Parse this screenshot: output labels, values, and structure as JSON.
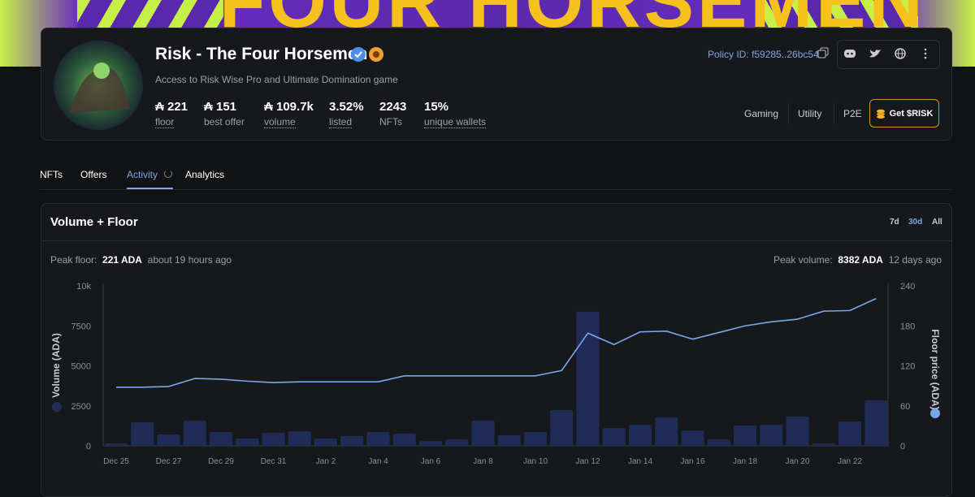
{
  "banner": {
    "text": "FOUR HORSEMEN"
  },
  "collection": {
    "title": "Risk - The Four Horsemen",
    "description": "Access to Risk Wise Pro and Ultimate Domination game",
    "policy_id": "Policy ID: f59285..26bc54",
    "stats": [
      {
        "value": "₳ 221",
        "label": "floor",
        "dotted": true
      },
      {
        "value": "₳ 151",
        "label": "best offer",
        "dotted": false
      },
      {
        "value": "₳ 109.7k",
        "label": "volume",
        "dotted": true
      },
      {
        "value": "3.52%",
        "label": "listed",
        "dotted": true
      },
      {
        "value": "2243",
        "label": "NFTs",
        "dotted": false
      },
      {
        "value": "15%",
        "label": "unique wallets",
        "dotted": true
      }
    ],
    "tags": [
      "Gaming",
      "Utility",
      "P2E"
    ],
    "cta": "Get $RISK"
  },
  "tabs": {
    "items": [
      "NFTs",
      "Offers",
      "Activity",
      "Analytics"
    ],
    "active": 2
  },
  "chart_panel": {
    "title": "Volume + Floor",
    "ranges": [
      "7d",
      "30d",
      "All"
    ],
    "active_range": 1,
    "peak_floor": {
      "label": "Peak floor:",
      "value": "221 ADA",
      "time": "about 19 hours ago"
    },
    "peak_volume": {
      "label": "Peak volume:",
      "value": "8382 ADA",
      "time": "12 days ago"
    }
  },
  "chart_data": {
    "type": "bar",
    "categories": [
      "Dec 25",
      null,
      "Dec 27",
      null,
      "Dec 29",
      null,
      "Dec 31",
      null,
      "Jan 2",
      null,
      "Jan 4",
      null,
      "Jan 6",
      null,
      "Jan 8",
      null,
      "Jan 10",
      null,
      "Jan 12",
      null,
      "Jan 14",
      null,
      "Jan 16",
      null,
      "Jan 18",
      null,
      "Jan 20",
      null,
      "Jan 22",
      null
    ],
    "series": [
      {
        "name": "Volume (ADA)",
        "type": "bar",
        "color": "#1f2c58",
        "values": [
          150,
          1470,
          710,
          1570,
          860,
          460,
          810,
          910,
          450,
          610,
          860,
          760,
          300,
          400,
          1570,
          660,
          860,
          2230,
          8382,
          1110,
          1320,
          1780,
          960,
          400,
          1270,
          1320,
          1830,
          150,
          1520,
          2840
        ]
      },
      {
        "name": "Floor price (ADA)",
        "type": "line",
        "axis": "y2",
        "color": "#78a6ea",
        "values": [
          88,
          88,
          89,
          101,
          100,
          97,
          95,
          96,
          96,
          96,
          96,
          105,
          105,
          105,
          105,
          105,
          105,
          113,
          169,
          152,
          171,
          172,
          160,
          170,
          180,
          186,
          190,
          202,
          203,
          221
        ]
      }
    ],
    "ylim": [
      0,
      10000
    ],
    "yticks": [
      0,
      2500,
      5000,
      7500,
      {
        "value": 10000,
        "label": "10k"
      }
    ],
    "y2lim": [
      0,
      240
    ],
    "y2ticks": [
      0,
      60,
      120,
      180,
      240
    ],
    "grid": false
  }
}
